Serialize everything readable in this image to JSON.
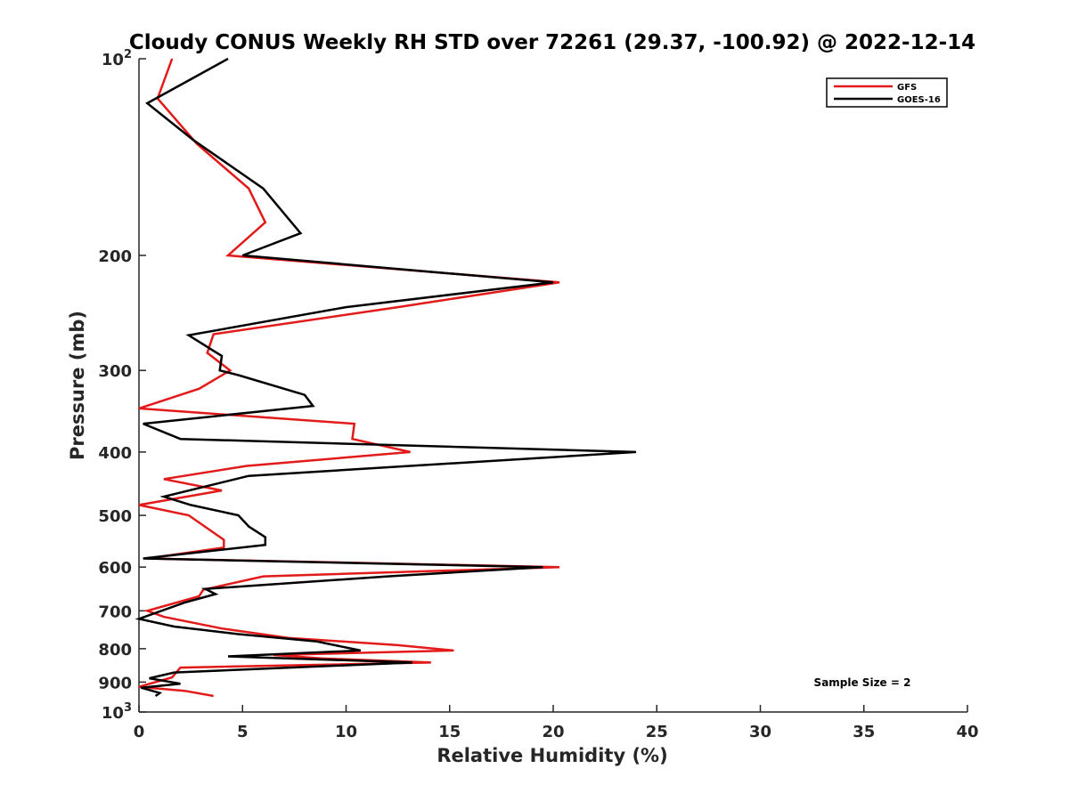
{
  "chart_data": {
    "type": "line",
    "title": "Cloudy CONUS Weekly RH STD over 72261 (29.37, -100.92) @ 2022-12-14",
    "xlabel": "Relative Humidity (%)",
    "ylabel": "Pressure (mb)",
    "xlim": [
      0,
      40
    ],
    "ylim": [
      100,
      1000
    ],
    "y_scale": "log",
    "y_reversed": true,
    "grid": false,
    "legend_position": "top-right",
    "x_ticks": [
      0,
      5,
      10,
      15,
      20,
      25,
      30,
      35,
      40
    ],
    "x_tick_labels": [
      "0",
      "5",
      "10",
      "15",
      "20",
      "25",
      "30",
      "35",
      "40"
    ],
    "y_ticks": [
      {
        "value": 100,
        "base": "10",
        "exp": "2"
      },
      {
        "value": 200,
        "label": "200"
      },
      {
        "value": 300,
        "label": "300"
      },
      {
        "value": 400,
        "label": "400"
      },
      {
        "value": 500,
        "label": "500"
      },
      {
        "value": 600,
        "label": "600"
      },
      {
        "value": 700,
        "label": "700"
      },
      {
        "value": 800,
        "label": "800"
      },
      {
        "value": 900,
        "label": "900"
      },
      {
        "value": 1000,
        "base": "10",
        "exp": "3"
      }
    ],
    "annotation": "Sample Size = 2",
    "series": [
      {
        "name": "GFS",
        "color": "#e31a1a",
        "points": [
          [
            1.6,
            100
          ],
          [
            0.9,
            115
          ],
          [
            2.8,
            135
          ],
          [
            5.3,
            158
          ],
          [
            6.1,
            178
          ],
          [
            4.3,
            200
          ],
          [
            20.3,
            220
          ],
          [
            12.5,
            240
          ],
          [
            3.6,
            264
          ],
          [
            3.3,
            282
          ],
          [
            4.4,
            300
          ],
          [
            2.9,
            320
          ],
          [
            0.0,
            343
          ],
          [
            10.4,
            362
          ],
          [
            10.3,
            382
          ],
          [
            13.1,
            400
          ],
          [
            5.2,
            420
          ],
          [
            1.2,
            440
          ],
          [
            4.0,
            458
          ],
          [
            0.0,
            482
          ],
          [
            2.4,
            500
          ],
          [
            4.1,
            545
          ],
          [
            4.1,
            560
          ],
          [
            0.4,
            582
          ],
          [
            20.3,
            600
          ],
          [
            6.0,
            620
          ],
          [
            3.1,
            650
          ],
          [
            2.9,
            665
          ],
          [
            0.4,
            700
          ],
          [
            1.2,
            715
          ],
          [
            4.0,
            745
          ],
          [
            7.2,
            770
          ],
          [
            12.5,
            790
          ],
          [
            15.2,
            805
          ],
          [
            6.5,
            818
          ],
          [
            8.8,
            828
          ],
          [
            14.1,
            840
          ],
          [
            2.0,
            855
          ],
          [
            1.6,
            885
          ],
          [
            0.0,
            915
          ],
          [
            2.2,
            928
          ],
          [
            3.6,
            945
          ]
        ]
      },
      {
        "name": "GOES-16",
        "color": "#000000",
        "points": [
          [
            4.3,
            100
          ],
          [
            0.4,
            117
          ],
          [
            2.6,
            133
          ],
          [
            6.0,
            158
          ],
          [
            7.8,
            185
          ],
          [
            5.0,
            200
          ],
          [
            20.0,
            220
          ],
          [
            10.0,
            240
          ],
          [
            2.4,
            265
          ],
          [
            3.6,
            280
          ],
          [
            4.0,
            285
          ],
          [
            3.9,
            300
          ],
          [
            4.8,
            305
          ],
          [
            8.0,
            327
          ],
          [
            8.4,
            340
          ],
          [
            0.2,
            362
          ],
          [
            2.0,
            382
          ],
          [
            24.0,
            400
          ],
          [
            5.3,
            435
          ],
          [
            1.2,
            468
          ],
          [
            2.5,
            482
          ],
          [
            4.8,
            500
          ],
          [
            5.3,
            520
          ],
          [
            6.1,
            540
          ],
          [
            6.1,
            555
          ],
          [
            0.2,
            582
          ],
          [
            19.5,
            600
          ],
          [
            12.0,
            620
          ],
          [
            3.2,
            648
          ],
          [
            3.7,
            660
          ],
          [
            2.2,
            680
          ],
          [
            0.0,
            720
          ],
          [
            1.7,
            740
          ],
          [
            4.8,
            760
          ],
          [
            8.6,
            780
          ],
          [
            10.7,
            805
          ],
          [
            4.3,
            822
          ],
          [
            13.2,
            840
          ],
          [
            1.7,
            870
          ],
          [
            0.5,
            888
          ],
          [
            2.0,
            905
          ],
          [
            0.1,
            918
          ],
          [
            1.0,
            935
          ],
          [
            0.8,
            945
          ]
        ]
      }
    ]
  }
}
